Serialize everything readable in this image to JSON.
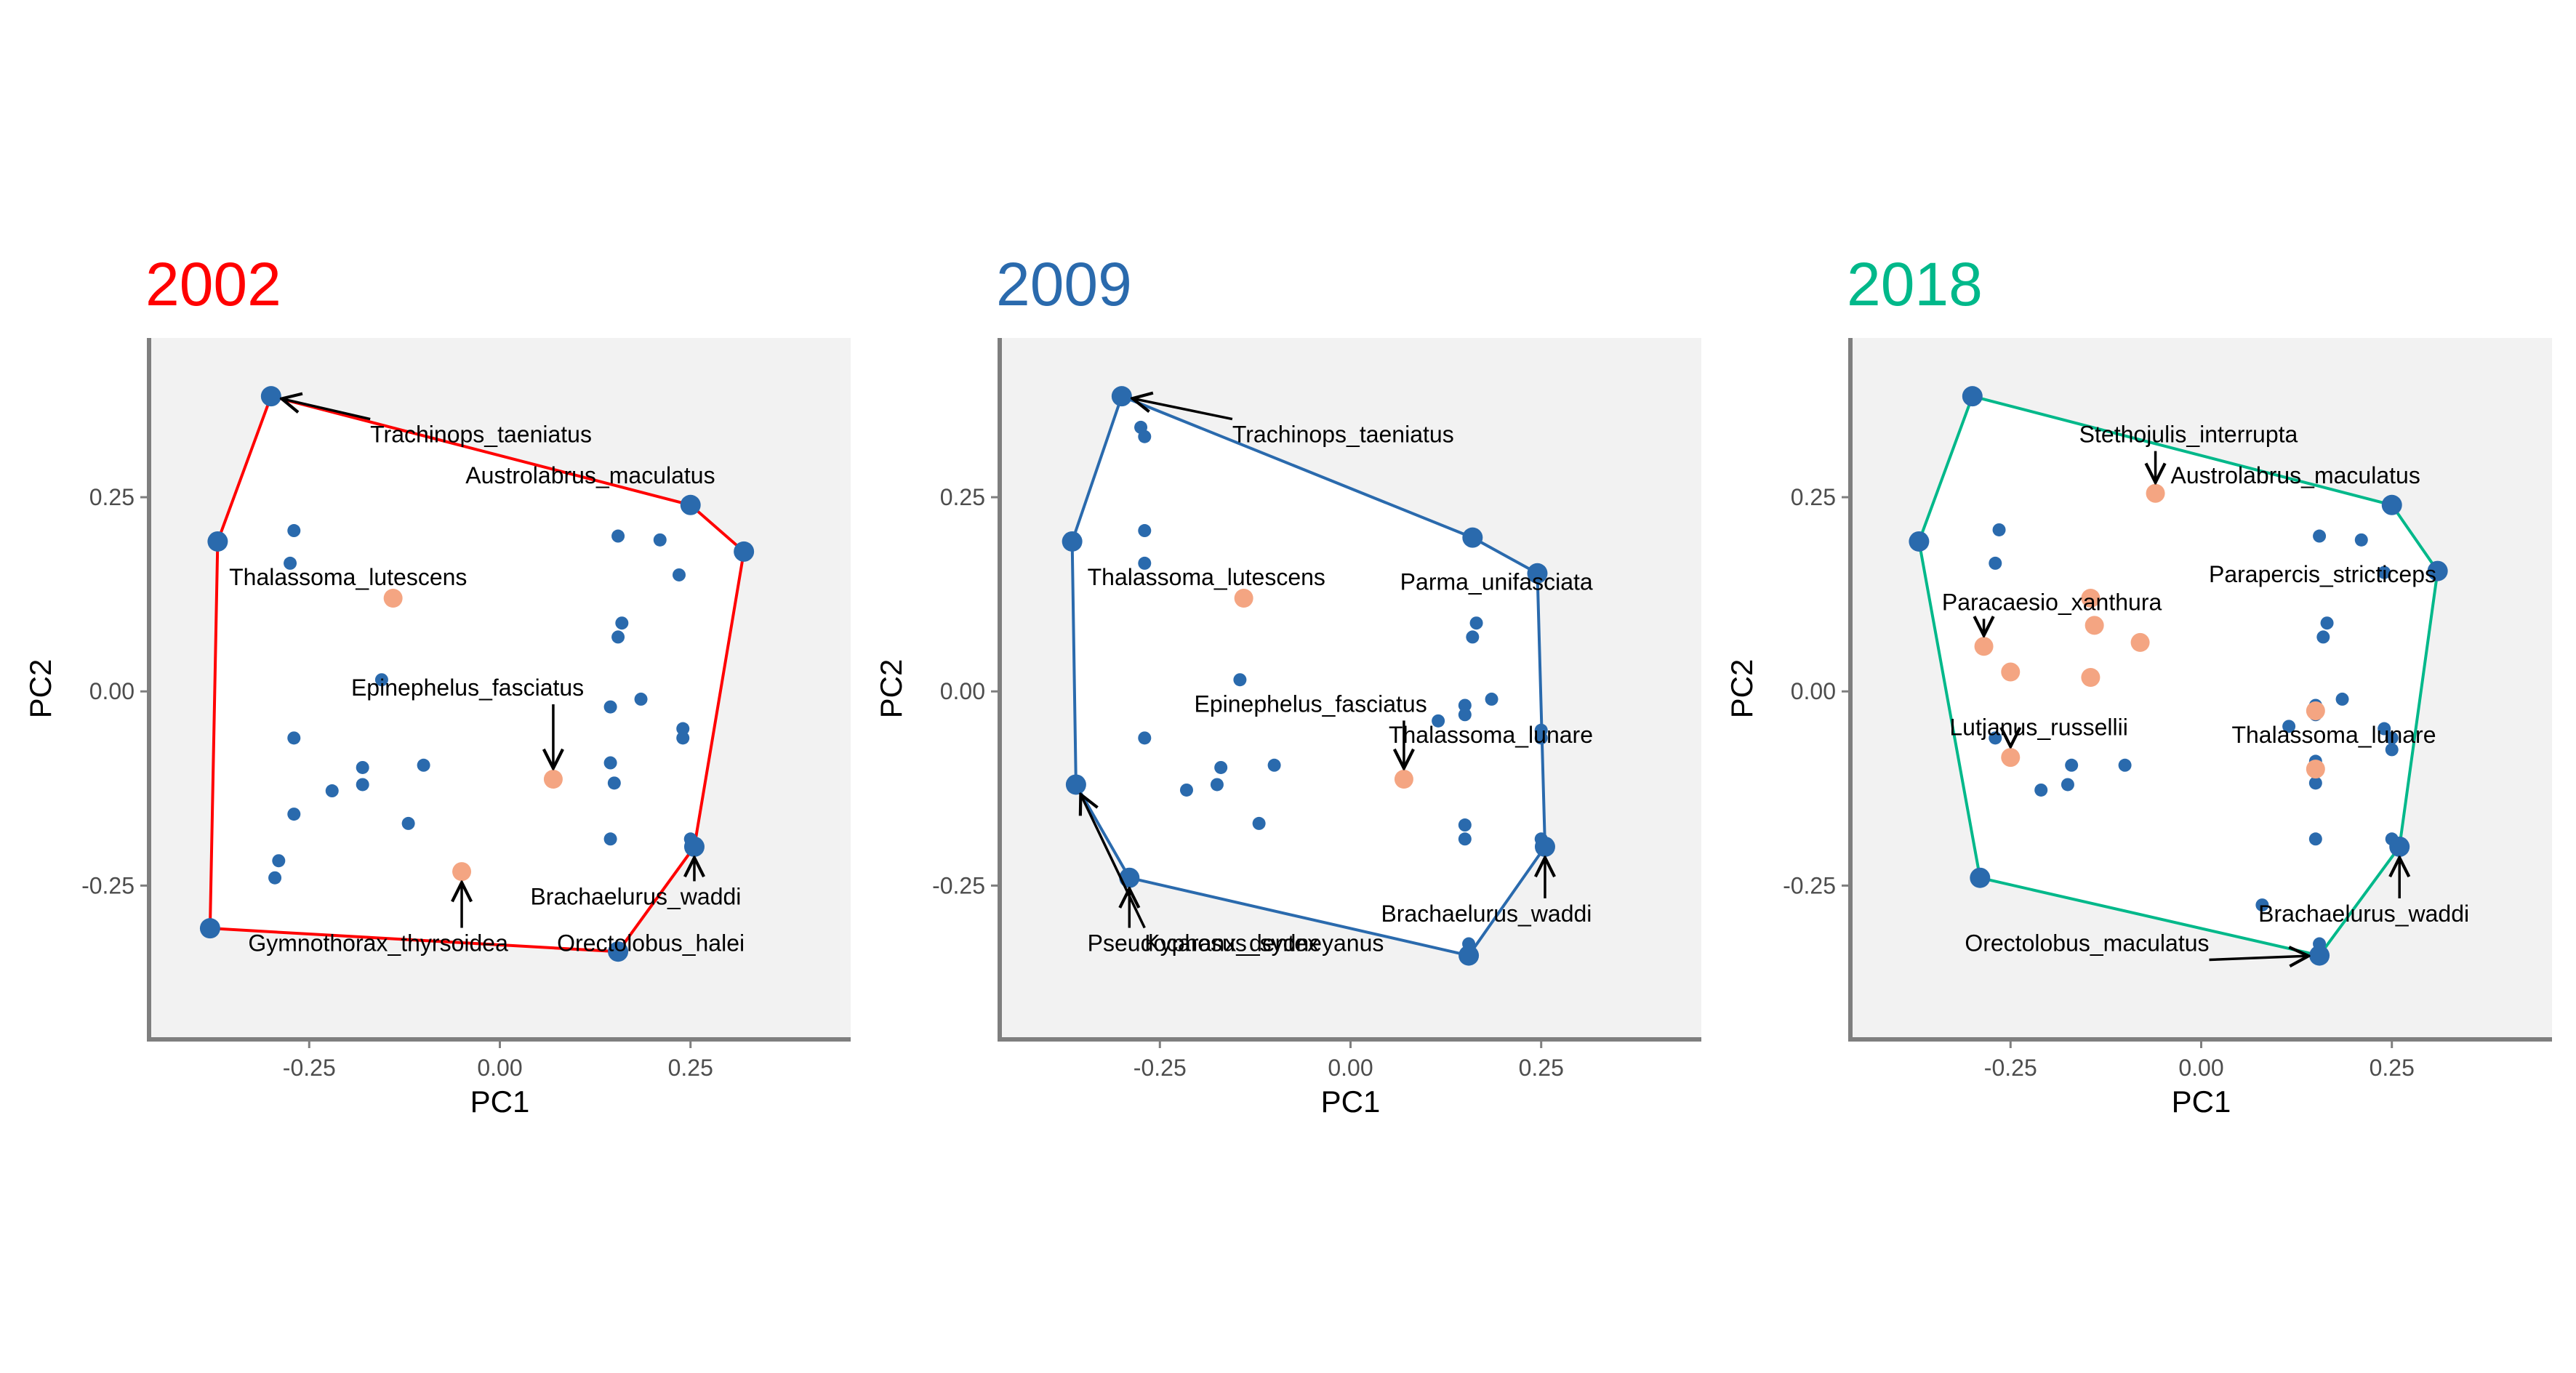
{
  "figure": {
    "colors": {
      "background": "#ffffff",
      "panel_shade": "#f2f2f2",
      "axis_line": "#7f7f7f",
      "point_blue": "#2a6aad",
      "point_salmon": "#f4a582",
      "annotation": "#000000"
    }
  },
  "chart_data": [
    {
      "type": "scatter",
      "title": "2002",
      "title_color": "#ff0000",
      "hull_color": "#ff0000",
      "xlabel": "PC1",
      "ylabel": "PC2",
      "xlim": [
        -0.46,
        0.46
      ],
      "ylim": [
        -0.448,
        0.455
      ],
      "xticks": [
        {
          "value": -0.25,
          "label": "-0.25"
        },
        {
          "value": 0,
          "label": "0.00"
        },
        {
          "value": 0.25,
          "label": "0.25"
        }
      ],
      "yticks": [
        {
          "value": -0.25,
          "label": "-0.25"
        },
        {
          "value": 0,
          "label": "0.00"
        },
        {
          "value": 0.25,
          "label": "0.25"
        }
      ],
      "shade": [
        [
          -0.46,
          0.455
        ],
        [
          0.46,
          0.455
        ],
        [
          0.46,
          -0.448
        ],
        [
          -0.46,
          -0.448
        ]
      ],
      "hull": [
        [
          -0.3,
          0.38
        ],
        [
          0.25,
          0.24
        ],
        [
          0.32,
          0.18
        ],
        [
          0.255,
          -0.2
        ],
        [
          0.155,
          -0.335
        ],
        [
          -0.38,
          -0.305
        ],
        [
          -0.37,
          0.193
        ]
      ],
      "points_blue_large": [
        [
          -0.3,
          0.38
        ],
        [
          -0.37,
          0.193
        ],
        [
          0.25,
          0.24
        ],
        [
          0.32,
          0.18
        ],
        [
          0.255,
          -0.2
        ],
        [
          0.155,
          -0.335
        ],
        [
          -0.38,
          -0.305
        ]
      ],
      "points_blue_small": [
        [
          -0.27,
          0.207
        ],
        [
          -0.275,
          0.165
        ],
        [
          0.155,
          0.2
        ],
        [
          0.21,
          0.195
        ],
        [
          0.235,
          0.15
        ],
        [
          0.16,
          0.088
        ],
        [
          0.155,
          0.07
        ],
        [
          -0.155,
          0.015
        ],
        [
          0.185,
          -0.01
        ],
        [
          0.145,
          -0.02
        ],
        [
          0.24,
          -0.048
        ],
        [
          0.24,
          -0.06
        ],
        [
          -0.27,
          -0.06
        ],
        [
          -0.18,
          -0.098
        ],
        [
          -0.1,
          -0.095
        ],
        [
          0.145,
          -0.092
        ],
        [
          0.15,
          -0.118
        ],
        [
          -0.18,
          -0.12
        ],
        [
          -0.22,
          -0.128
        ],
        [
          -0.27,
          -0.158
        ],
        [
          -0.12,
          -0.17
        ],
        [
          0.145,
          -0.19
        ],
        [
          0.25,
          -0.19
        ],
        [
          -0.29,
          -0.218
        ],
        [
          -0.295,
          -0.24
        ]
      ],
      "points_salmon": [
        [
          -0.14,
          0.12
        ],
        [
          0.07,
          -0.113
        ],
        [
          -0.05,
          -0.232
        ]
      ],
      "annotations": [
        {
          "text": "Trachinops_taeniatus",
          "lx": -0.17,
          "ly": 0.33,
          "ax": -0.3,
          "ay": 0.38
        },
        {
          "text": "Austrolabrus_maculatus",
          "lx": -0.045,
          "ly": 0.277
        },
        {
          "text": "Thalassoma_lutescens",
          "lx": -0.355,
          "ly": 0.146
        },
        {
          "text": "Epinephelus_fasciatus",
          "lx": -0.195,
          "ly": 0.004,
          "ax": 0.07,
          "ay": -0.113
        },
        {
          "text": "Brachaelurus_waddi",
          "lx": 0.04,
          "ly": -0.265,
          "ax": 0.255,
          "ay": -0.2
        },
        {
          "text": "Gymnothorax_thyrsoidea",
          "lx": -0.33,
          "ly": -0.325,
          "ax": -0.05,
          "ay": -0.232
        },
        {
          "text": "Orectolobus_halei",
          "lx": 0.075,
          "ly": -0.325
        }
      ]
    },
    {
      "type": "scatter",
      "title": "2009",
      "title_color": "#2a6aad",
      "hull_color": "#2a6aad",
      "xlabel": "PC1",
      "ylabel": "PC2",
      "xlim": [
        -0.46,
        0.46
      ],
      "ylim": [
        -0.448,
        0.455
      ],
      "xticks": [
        {
          "value": -0.25,
          "label": "-0.25"
        },
        {
          "value": 0,
          "label": "0.00"
        },
        {
          "value": 0.25,
          "label": "0.25"
        }
      ],
      "yticks": [
        {
          "value": -0.25,
          "label": "-0.25"
        },
        {
          "value": 0,
          "label": "0.00"
        },
        {
          "value": 0.25,
          "label": "0.25"
        }
      ],
      "shade": [
        [
          -0.46,
          0.455
        ],
        [
          0.46,
          0.455
        ],
        [
          0.46,
          -0.448
        ],
        [
          -0.46,
          -0.448
        ]
      ],
      "hull": [
        [
          -0.3,
          0.38
        ],
        [
          0.16,
          0.198
        ],
        [
          0.245,
          0.152
        ],
        [
          0.255,
          -0.2
        ],
        [
          0.155,
          -0.34
        ],
        [
          -0.29,
          -0.24
        ],
        [
          -0.36,
          -0.12
        ],
        [
          -0.365,
          0.193
        ]
      ],
      "points_blue_large": [
        [
          -0.3,
          0.38
        ],
        [
          -0.365,
          0.193
        ],
        [
          0.16,
          0.198
        ],
        [
          0.245,
          0.152
        ],
        [
          0.255,
          -0.2
        ],
        [
          0.155,
          -0.34
        ],
        [
          -0.29,
          -0.24
        ],
        [
          -0.36,
          -0.12
        ]
      ],
      "points_blue_small": [
        [
          -0.275,
          0.34
        ],
        [
          -0.27,
          0.328
        ],
        [
          -0.27,
          0.207
        ],
        [
          -0.27,
          0.165
        ],
        [
          0.165,
          0.088
        ],
        [
          0.16,
          0.07
        ],
        [
          -0.145,
          0.015
        ],
        [
          0.185,
          -0.01
        ],
        [
          0.15,
          -0.018
        ],
        [
          0.15,
          -0.03
        ],
        [
          0.115,
          -0.038
        ],
        [
          0.25,
          -0.05
        ],
        [
          0.25,
          -0.06
        ],
        [
          -0.27,
          -0.06
        ],
        [
          -0.17,
          -0.098
        ],
        [
          -0.1,
          -0.095
        ],
        [
          -0.175,
          -0.12
        ],
        [
          -0.215,
          -0.127
        ],
        [
          -0.12,
          -0.17
        ],
        [
          0.15,
          -0.172
        ],
        [
          0.15,
          -0.19
        ],
        [
          0.25,
          -0.19
        ],
        [
          0.155,
          -0.325
        ]
      ],
      "points_salmon": [
        [
          -0.14,
          0.12
        ],
        [
          0.07,
          -0.113
        ]
      ],
      "annotations": [
        {
          "text": "Trachinops_taeniatus",
          "lx": -0.155,
          "ly": 0.33,
          "ax": -0.3,
          "ay": 0.38
        },
        {
          "text": "Thalassoma_lutescens",
          "lx": -0.345,
          "ly": 0.146
        },
        {
          "text": "Parma_unifasciata",
          "lx": 0.065,
          "ly": 0.14
        },
        {
          "text": "Epinephelus_fasciatus",
          "lx": -0.205,
          "ly": -0.017,
          "ax": 0.07,
          "ay": -0.113
        },
        {
          "text": "Thalassoma_lunare",
          "lx": 0.05,
          "ly": -0.057
        },
        {
          "text": "Brachaelurus_waddi",
          "lx": 0.04,
          "ly": -0.287,
          "ax": 0.255,
          "ay": -0.2
        },
        {
          "text": "Pseudocaranx_dentex",
          "lx": -0.345,
          "ly": -0.325,
          "ax": -0.29,
          "ay": -0.24
        },
        {
          "text": "Kyphosus_sydneyanus",
          "lx": -0.27,
          "ly": -0.325,
          "ax": -0.36,
          "ay": -0.12
        }
      ]
    },
    {
      "type": "scatter",
      "title": "2018",
      "title_color": "#00b88a",
      "hull_color": "#00b88a",
      "xlabel": "PC1",
      "ylabel": "PC2",
      "xlim": [
        -0.46,
        0.46
      ],
      "ylim": [
        -0.448,
        0.455
      ],
      "xticks": [
        {
          "value": -0.25,
          "label": "-0.25"
        },
        {
          "value": 0,
          "label": "0.00"
        },
        {
          "value": 0.25,
          "label": "0.25"
        }
      ],
      "yticks": [
        {
          "value": -0.25,
          "label": "-0.25"
        },
        {
          "value": 0,
          "label": "0.00"
        },
        {
          "value": 0.25,
          "label": "0.25"
        }
      ],
      "shade": [
        [
          -0.46,
          0.455
        ],
        [
          0.46,
          0.455
        ],
        [
          0.46,
          -0.448
        ],
        [
          -0.46,
          -0.448
        ]
      ],
      "hull": [
        [
          -0.3,
          0.38
        ],
        [
          0.25,
          0.24
        ],
        [
          0.31,
          0.155
        ],
        [
          0.26,
          -0.2
        ],
        [
          0.155,
          -0.34
        ],
        [
          -0.29,
          -0.24
        ],
        [
          -0.37,
          0.193
        ]
      ],
      "points_blue_large": [
        [
          -0.3,
          0.38
        ],
        [
          -0.37,
          0.193
        ],
        [
          0.25,
          0.24
        ],
        [
          0.31,
          0.155
        ],
        [
          0.26,
          -0.2
        ],
        [
          0.155,
          -0.34
        ],
        [
          -0.29,
          -0.24
        ]
      ],
      "points_blue_small": [
        [
          -0.265,
          0.208
        ],
        [
          -0.27,
          0.165
        ],
        [
          0.155,
          0.2
        ],
        [
          0.21,
          0.195
        ],
        [
          0.24,
          0.153
        ],
        [
          0.165,
          0.088
        ],
        [
          0.16,
          0.07
        ],
        [
          0.185,
          -0.01
        ],
        [
          0.15,
          -0.018
        ],
        [
          0.15,
          -0.03
        ],
        [
          0.115,
          -0.045
        ],
        [
          0.24,
          -0.048
        ],
        [
          0.25,
          -0.06
        ],
        [
          0.25,
          -0.075
        ],
        [
          -0.27,
          -0.06
        ],
        [
          -0.17,
          -0.095
        ],
        [
          -0.1,
          -0.095
        ],
        [
          -0.175,
          -0.12
        ],
        [
          -0.21,
          -0.127
        ],
        [
          0.15,
          -0.09
        ],
        [
          0.15,
          -0.118
        ],
        [
          0.25,
          -0.19
        ],
        [
          0.15,
          -0.19
        ],
        [
          0.08,
          -0.275
        ],
        [
          0.155,
          -0.325
        ]
      ],
      "points_salmon": [
        [
          -0.06,
          0.255
        ],
        [
          -0.285,
          0.058
        ],
        [
          -0.25,
          -0.085
        ],
        [
          -0.145,
          0.12
        ],
        [
          -0.14,
          0.085
        ],
        [
          -0.08,
          0.063
        ],
        [
          -0.25,
          0.025
        ],
        [
          -0.145,
          0.018
        ],
        [
          0.15,
          -0.025
        ],
        [
          0.15,
          -0.1
        ]
      ],
      "annotations": [
        {
          "text": "Stethojulis_interrupta",
          "lx": -0.16,
          "ly": 0.33,
          "ax": -0.06,
          "ay": 0.255
        },
        {
          "text": "Austrolabrus_maculatus",
          "lx": -0.04,
          "ly": 0.277
        },
        {
          "text": "Parapercis_stricticeps",
          "lx": 0.01,
          "ly": 0.15
        },
        {
          "text": "Paracaesio_xanthura",
          "lx": -0.34,
          "ly": 0.114,
          "ax": -0.285,
          "ay": 0.058
        },
        {
          "text": "Lutjanus_russellii",
          "lx": -0.33,
          "ly": -0.047,
          "ax": -0.25,
          "ay": -0.085
        },
        {
          "text": "Thalassoma_lunare",
          "lx": 0.04,
          "ly": -0.057
        },
        {
          "text": "Brachaelurus_waddi",
          "lx": 0.075,
          "ly": -0.287,
          "ax": 0.26,
          "ay": -0.2
        },
        {
          "text": "Orectolobus_maculatus",
          "lx": -0.31,
          "ly": -0.325,
          "ax": 0.155,
          "ay": -0.34
        }
      ]
    }
  ]
}
